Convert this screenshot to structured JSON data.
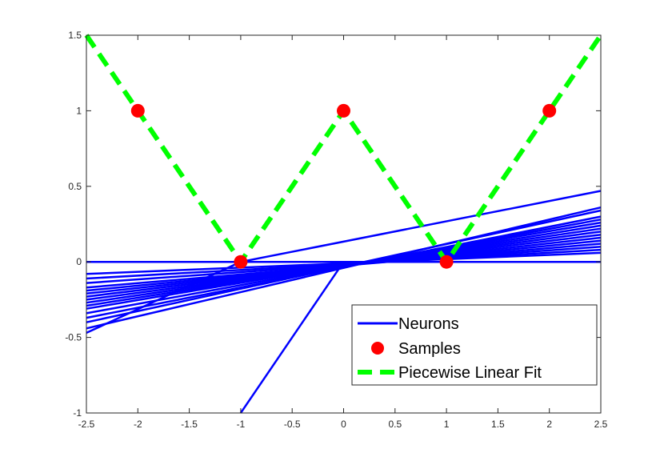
{
  "chart_data": {
    "type": "line",
    "title": "",
    "xlabel": "",
    "ylabel": "",
    "xlim": [
      -2.5,
      2.5
    ],
    "ylim": [
      -1,
      1.5
    ],
    "x_ticks": [
      "-2.5",
      "-2",
      "-1.5",
      "-1",
      "-0.5",
      "0",
      "0.5",
      "1",
      "1.5",
      "2",
      "2.5"
    ],
    "y_ticks": [
      "-1",
      "-0.5",
      "0",
      "0.5",
      "1",
      "1.5"
    ],
    "grid": false,
    "legend_position": "bottom-right",
    "colors": {
      "neurons": "#0000ff",
      "samples": "#ff0000",
      "fit": "#00ff00"
    },
    "series": [
      {
        "name": "Neurons",
        "kind": "line",
        "lines": [
          [
            [
              -2.5,
              0
            ],
            [
              2.5,
              0
            ]
          ],
          [
            [
              -2.5,
              -0.47
            ],
            [
              -1,
              0
            ],
            [
              2.5,
              0.47
            ]
          ],
          [
            [
              -2.5,
              -0.44
            ],
            [
              2.5,
              0.36
            ]
          ],
          [
            [
              -2.5,
              -0.4
            ],
            [
              2.5,
              0.34
            ]
          ],
          [
            [
              -2.5,
              -0.37
            ],
            [
              2.5,
              0.3
            ]
          ],
          [
            [
              -2.5,
              -0.34
            ],
            [
              2.5,
              0.28
            ]
          ],
          [
            [
              -2.5,
              -0.31
            ],
            [
              2.5,
              0.26
            ]
          ],
          [
            [
              -2.5,
              -0.29
            ],
            [
              2.5,
              0.24
            ]
          ],
          [
            [
              -2.5,
              -0.27
            ],
            [
              2.5,
              0.22
            ]
          ],
          [
            [
              -2.5,
              -0.25
            ],
            [
              2.5,
              0.2
            ]
          ],
          [
            [
              -2.5,
              -0.23
            ],
            [
              2.5,
              0.18
            ]
          ],
          [
            [
              -2.5,
              -0.21
            ],
            [
              2.5,
              0.16
            ]
          ],
          [
            [
              -2.5,
              -0.19
            ],
            [
              2.5,
              0.14
            ]
          ],
          [
            [
              -2.5,
              -0.17
            ],
            [
              2.5,
              0.12
            ]
          ],
          [
            [
              -2.5,
              -0.14
            ],
            [
              2.5,
              0.1
            ]
          ],
          [
            [
              -2.5,
              -0.11
            ],
            [
              2.5,
              0.08
            ]
          ],
          [
            [
              -2.5,
              -0.08
            ],
            [
              2.5,
              0.06
            ]
          ],
          [
            [
              -1,
              -1
            ],
            [
              0,
              0
            ],
            [
              2.5,
              0
            ]
          ]
        ]
      },
      {
        "name": "Samples",
        "kind": "scatter",
        "points": [
          [
            -2,
            1
          ],
          [
            -1,
            0
          ],
          [
            0,
            1
          ],
          [
            1,
            0
          ],
          [
            2,
            1
          ]
        ]
      },
      {
        "name": "Piecewise Linear Fit",
        "kind": "dashed-line",
        "points": [
          [
            -2.5,
            1.5
          ],
          [
            -1,
            0
          ],
          [
            0,
            1
          ],
          [
            1,
            0
          ],
          [
            2.5,
            1.5
          ]
        ]
      }
    ]
  }
}
